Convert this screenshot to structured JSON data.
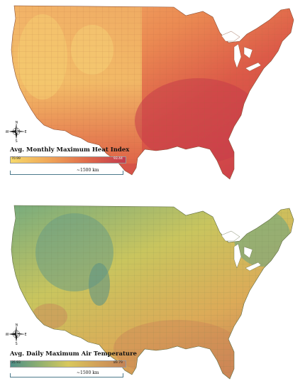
{
  "maps": [
    {
      "title": "Avg. Monthly Maximum Heat Index",
      "legend_min": "70.99",
      "legend_max": "93.44",
      "scale_label": "~1500 km",
      "colors": {
        "low": "#f6d469",
        "mid": "#e87b4c",
        "high": "#c9314a",
        "west": "#f2a55f",
        "border": "#9a5a3a"
      }
    },
    {
      "title": "Avg. Daily Maximum Air Temperature",
      "legend_min": "35.93",
      "legend_max": "89.79",
      "scale_label": "~1500 km",
      "colors": {
        "low": "#5b9e86",
        "mid": "#d8c85a",
        "high": "#c98355",
        "west": "#9fb86a",
        "border": "#6a7a4a"
      }
    }
  ],
  "compass": {
    "n": "N",
    "s": "S",
    "e": "E",
    "w": "W"
  }
}
